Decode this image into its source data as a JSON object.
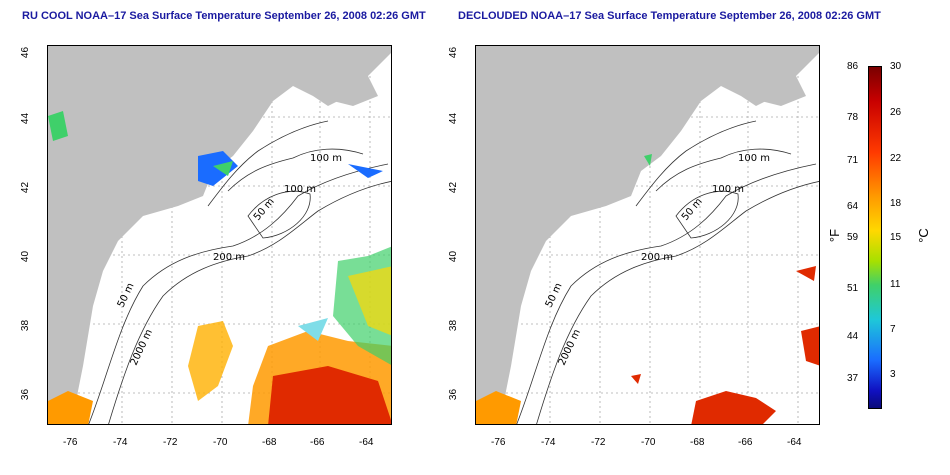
{
  "panels": [
    {
      "title": "RU COOL NOAA–17 Sea Surface Temperature September 26, 2008 02:26 GMT"
    },
    {
      "title": "DECLOUDED NOAA–17 Sea Surface Temperature September 26, 2008 02:26 GMT"
    }
  ],
  "axes": {
    "lon_ticks": [
      "-76",
      "-74",
      "-72",
      "-70",
      "-68",
      "-66",
      "-64"
    ],
    "lat_ticks": [
      "46",
      "44",
      "42",
      "40",
      "38",
      "36"
    ]
  },
  "contours": {
    "labels": [
      "100 m",
      "100 m",
      "50 m",
      "200 m",
      "50 m",
      "2000 m"
    ]
  },
  "colorbar": {
    "fahrenheit_unit": "°F",
    "celsius_unit": "°C",
    "fahrenheit_labels": [
      "86",
      "78",
      "71",
      "64",
      "59",
      "51",
      "44",
      "37"
    ],
    "celsius_labels": [
      "30",
      "26",
      "22",
      "18",
      "15",
      "11",
      "7",
      "3"
    ]
  },
  "colors": {
    "land": "#c0c0c0",
    "title": "#1a1aa0",
    "hot": "#e02a00",
    "warm": "#ff9a00",
    "cool": "#1a6cff"
  }
}
